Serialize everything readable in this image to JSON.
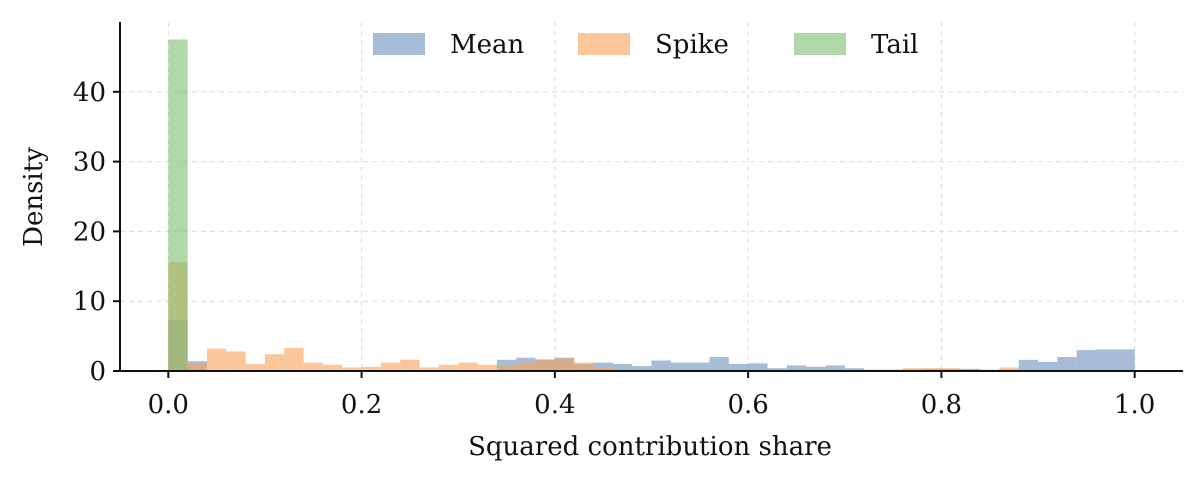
{
  "chart_data": {
    "type": "histogram",
    "xlabel": "Squared contribution share",
    "ylabel": "Density",
    "xlim": [
      -0.05,
      1.05
    ],
    "ylim": [
      0,
      50
    ],
    "xticks": [
      "0.0",
      "0.2",
      "0.4",
      "0.6",
      "0.8",
      "1.0"
    ],
    "xtick_values": [
      0.0,
      0.2,
      0.4,
      0.6,
      0.8,
      1.0
    ],
    "yticks": [
      "0",
      "10",
      "20",
      "30",
      "40"
    ],
    "ytick_values": [
      0,
      10,
      20,
      30,
      40
    ],
    "grid": true,
    "legend_position": "top-center",
    "bin_width": 0.02,
    "series": [
      {
        "name": "Mean",
        "color": "#7193bd",
        "bins": [
          [
            0.0,
            7.3
          ],
          [
            0.02,
            1.4
          ],
          [
            0.34,
            1.6
          ],
          [
            0.36,
            1.9
          ],
          [
            0.38,
            1.6
          ],
          [
            0.4,
            1.9
          ],
          [
            0.42,
            1.0
          ],
          [
            0.44,
            1.2
          ],
          [
            0.46,
            1.0
          ],
          [
            0.48,
            0.7
          ],
          [
            0.5,
            1.5
          ],
          [
            0.52,
            1.2
          ],
          [
            0.54,
            1.2
          ],
          [
            0.56,
            2.0
          ],
          [
            0.58,
            1.0
          ],
          [
            0.6,
            1.1
          ],
          [
            0.62,
            0.4
          ],
          [
            0.64,
            0.8
          ],
          [
            0.66,
            0.6
          ],
          [
            0.68,
            0.8
          ],
          [
            0.7,
            0.4
          ],
          [
            0.72,
            0.2
          ],
          [
            0.74,
            0.2
          ],
          [
            0.76,
            0.2
          ],
          [
            0.78,
            0.3
          ],
          [
            0.8,
            0.3
          ],
          [
            0.82,
            0.3
          ],
          [
            0.84,
            0.2
          ],
          [
            0.86,
            0.2
          ],
          [
            0.88,
            1.6
          ],
          [
            0.9,
            1.3
          ],
          [
            0.92,
            2.0
          ],
          [
            0.94,
            3.0
          ],
          [
            0.96,
            3.1
          ],
          [
            0.98,
            3.1
          ]
        ]
      },
      {
        "name": "Spike",
        "color": "#f7a35c",
        "bins": [
          [
            0.0,
            15.6
          ],
          [
            0.02,
            1.1
          ],
          [
            0.04,
            3.2
          ],
          [
            0.06,
            2.8
          ],
          [
            0.08,
            1.0
          ],
          [
            0.1,
            2.4
          ],
          [
            0.12,
            3.3
          ],
          [
            0.14,
            1.2
          ],
          [
            0.16,
            0.9
          ],
          [
            0.18,
            0.5
          ],
          [
            0.2,
            0.6
          ],
          [
            0.22,
            1.2
          ],
          [
            0.24,
            1.6
          ],
          [
            0.26,
            0.5
          ],
          [
            0.28,
            0.9
          ],
          [
            0.3,
            1.2
          ],
          [
            0.32,
            0.9
          ],
          [
            0.34,
            0.7
          ],
          [
            0.36,
            1.2
          ],
          [
            0.38,
            1.7
          ],
          [
            0.4,
            1.8
          ],
          [
            0.42,
            1.2
          ],
          [
            0.44,
            0.5
          ],
          [
            0.5,
            0.1
          ],
          [
            0.56,
            0.1
          ],
          [
            0.6,
            0.1
          ],
          [
            0.74,
            0.1
          ],
          [
            0.76,
            0.4
          ],
          [
            0.78,
            0.4
          ],
          [
            0.8,
            0.4
          ],
          [
            0.82,
            0.3
          ],
          [
            0.84,
            0.1
          ],
          [
            0.86,
            0.5
          ],
          [
            0.92,
            0.1
          ],
          [
            0.96,
            0.2
          ]
        ]
      },
      {
        "name": "Tail",
        "color": "#7fbf72",
        "bins": [
          [
            0.0,
            47.5
          ]
        ]
      }
    ]
  }
}
